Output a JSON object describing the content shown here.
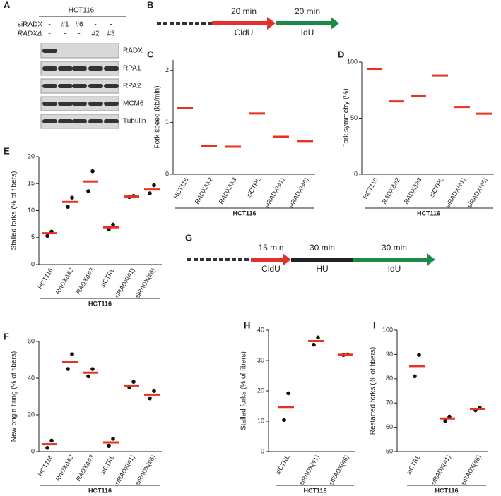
{
  "panel_labels": [
    "A",
    "B",
    "C",
    "D",
    "E",
    "F",
    "G",
    "H",
    "I"
  ],
  "blot": {
    "title": "HCT116",
    "row_labels": [
      "siRADX",
      "RADXΔ"
    ],
    "rows": [
      [
        "-",
        "#1",
        "#6",
        "-",
        "-"
      ],
      [
        "-",
        "-",
        "-",
        "#2",
        "#3"
      ]
    ],
    "bands": [
      "RADX",
      "RPA1",
      "RPA2",
      "MCM6",
      "Tubulin"
    ]
  },
  "scheme_b": {
    "segments": [
      {
        "time": "20 min",
        "label": "CldU",
        "color": "#e0322a"
      },
      {
        "time": "20 min",
        "label": "IdU",
        "color": "#1e8a4a"
      }
    ]
  },
  "scheme_g": {
    "segments": [
      {
        "time": "15 min",
        "label": "CldU",
        "color": "#e0322a"
      },
      {
        "time": "30 min",
        "label": "HU",
        "color": "#222222"
      },
      {
        "time": "30 min",
        "label": "IdU",
        "color": "#1e8a4a"
      }
    ]
  },
  "chart_data": [
    {
      "type": "dot",
      "y_label": "Fork speed (kb/min)",
      "group_label": "HCT116",
      "categories": [
        "HCT116",
        "RADXΔ#2",
        "RADXΔ#3",
        "siCTRL",
        "siRADX(#1)",
        "siRADX(#6)"
      ],
      "italic": [
        false,
        true,
        true,
        false,
        false,
        false
      ],
      "values": [
        1.27,
        0.55,
        0.53,
        1.17,
        0.72,
        0.64
      ],
      "color": "#e8321e",
      "ylim": [
        0,
        2.2
      ],
      "yticks": [
        0,
        1,
        2
      ]
    },
    {
      "type": "dot",
      "y_label": "Fork symmetry (%)",
      "group_label": "HCT116",
      "categories": [
        "HCT116",
        "RADXΔ#2",
        "RADXΔ#3",
        "siCTRL",
        "siRADX(#1)",
        "siRADX(#6)"
      ],
      "italic": [
        false,
        true,
        true,
        false,
        false,
        false
      ],
      "values": [
        94,
        65,
        70,
        88,
        60,
        54
      ],
      "color": "#e8321e",
      "ylim": [
        0,
        100
      ],
      "yticks": [
        0,
        50,
        100
      ]
    },
    {
      "type": "dot",
      "y_label": "Stalled forks (% of fibers)",
      "group_label": "HCT116",
      "categories": [
        "HCT116",
        "RADXΔ#2",
        "RADXΔ#3",
        "siCTRL",
        "siRADX(#1)",
        "siRADX(#6)"
      ],
      "italic": [
        false,
        true,
        true,
        false,
        false,
        false
      ],
      "values": [
        5.8,
        11.6,
        15.4,
        6.9,
        12.6,
        13.9
      ],
      "replicates": [
        [
          6.1,
          5.3
        ],
        [
          12.4,
          10.7
        ],
        [
          17.3,
          13.6
        ],
        [
          7.4,
          6.5
        ],
        [
          12.7,
          12.5
        ],
        [
          14.7,
          13.2
        ]
      ],
      "color": "#e8321e",
      "ylim": [
        0,
        20
      ],
      "yticks": [
        0,
        5,
        10,
        15,
        20
      ]
    },
    {
      "type": "dot",
      "y_label": "New origin firing (% of fibers)",
      "group_label": "HCT116",
      "categories": [
        "HCT116",
        "RADXΔ#2",
        "RADXΔ#3",
        "siCTRL",
        "siRADX(#1)",
        "siRADX(#6)"
      ],
      "italic": [
        false,
        true,
        true,
        false,
        false,
        false
      ],
      "values": [
        4,
        49,
        43,
        5,
        36,
        31
      ],
      "replicates": [
        [
          6,
          2
        ],
        [
          53,
          45
        ],
        [
          45,
          41
        ],
        [
          7,
          3
        ],
        [
          38,
          35
        ],
        [
          33,
          29
        ]
      ],
      "color": "#e8321e",
      "ylim": [
        0,
        60
      ],
      "yticks": [
        0,
        20,
        40,
        60
      ]
    },
    {
      "type": "dot",
      "y_label": "Stalled forks (% of fibers)",
      "group_label": "HCT116",
      "categories": [
        "siCTRL",
        "siRADX(#1)",
        "siRADX(#6)"
      ],
      "italic": [
        false,
        false,
        false
      ],
      "values": [
        14.7,
        36.4,
        31.9
      ],
      "replicates": [
        [
          19.2,
          10.4
        ],
        [
          37.6,
          35.2
        ],
        [
          32,
          31.8
        ]
      ],
      "color": "#e8321e",
      "ylim": [
        0,
        40
      ],
      "yticks": [
        0,
        10,
        20,
        30,
        40
      ]
    },
    {
      "type": "dot",
      "y_label": "Restarted forks (% of fibers)",
      "group_label": "HCT116",
      "categories": [
        "siCTRL",
        "siRADX(#1)",
        "siRADX(#6)"
      ],
      "italic": [
        false,
        false,
        false
      ],
      "values": [
        85.2,
        63.6,
        67.6
      ],
      "replicates": [
        [
          89.8,
          81
        ],
        [
          64.4,
          62.6
        ],
        [
          68,
          67
        ]
      ],
      "color": "#e8321e",
      "ylim": [
        50,
        100
      ],
      "yticks": [
        50,
        60,
        70,
        80,
        90,
        100
      ]
    }
  ]
}
